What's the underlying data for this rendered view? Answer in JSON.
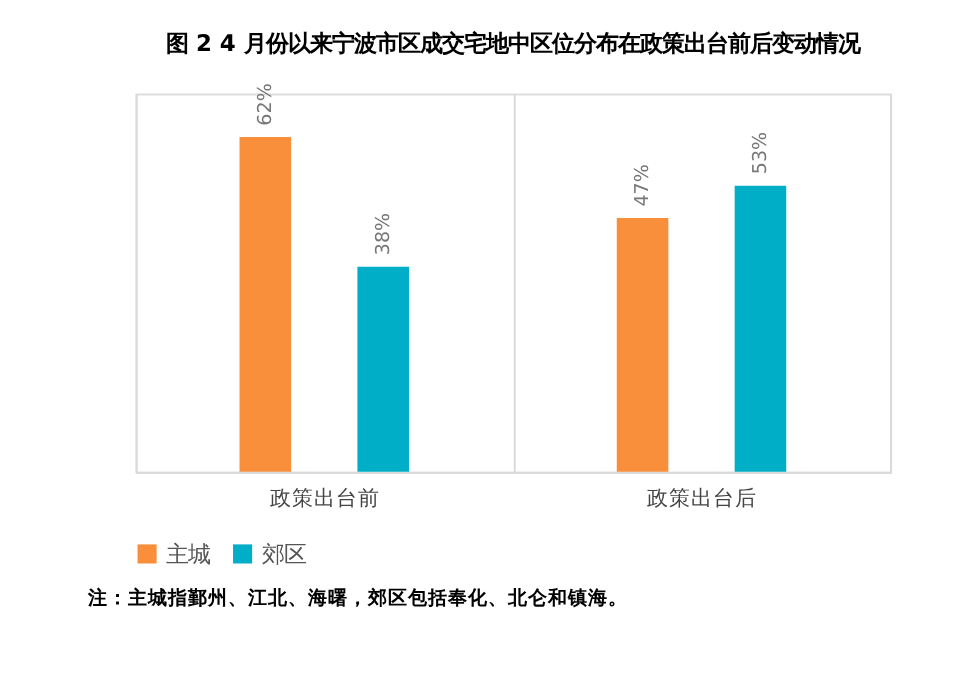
{
  "chart_data": {
    "type": "bar",
    "title": "图 2 4 月份以来宁波市区成交宅地中区位分布在政策出台前后变动情况",
    "categories": [
      "政策出台前",
      "政策出台后"
    ],
    "series": [
      {
        "name": "主城",
        "color": "#f98f3a",
        "values": [
          62,
          47
        ],
        "value_labels": [
          "62%",
          "47%"
        ]
      },
      {
        "name": "郊区",
        "color": "#00aec7",
        "values": [
          38,
          53
        ],
        "value_labels": [
          "38%",
          "53%"
        ]
      }
    ],
    "grid": "x",
    "legend": "bottom",
    "annotations": [
      "注：主城指鄞州、江北、海曙，郊区包括奉化、北仑和镇海。"
    ]
  }
}
